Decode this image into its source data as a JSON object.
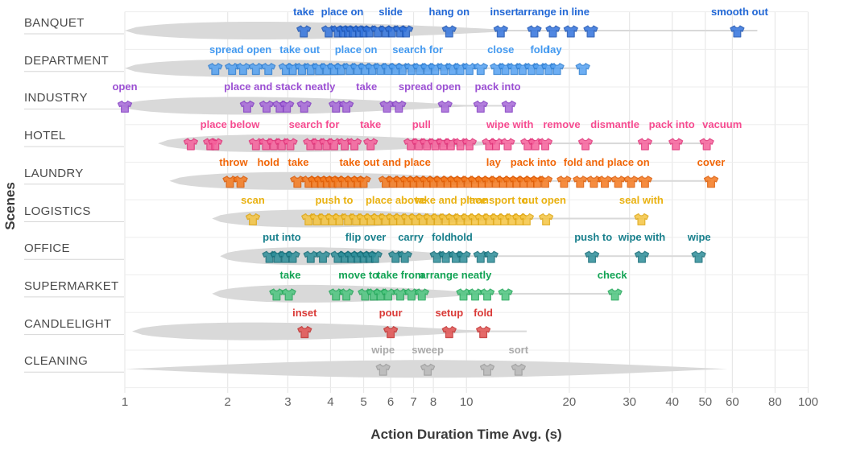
{
  "chart_data": {
    "type": "scatter",
    "subtype": "violin-strip-log",
    "xlabel": "Action Duration Time Avg. (s)",
    "ylabel": "Scenes",
    "x_scale": "log",
    "xlim": [
      1,
      100
    ],
    "x_ticks": [
      1,
      2,
      3,
      4,
      5,
      6,
      7,
      8,
      10,
      20,
      30,
      40,
      50,
      60,
      80,
      100
    ],
    "grid": "on",
    "marker_glyph": "tshirt-icon",
    "theme": {
      "background": "#ffffff",
      "violin_fill": "#d9d9d9",
      "grid_vertical": "#e8e8e8",
      "grid_horizontal": "#ededed",
      "row_separator": "#d6d6d6",
      "tick_text": "#636363",
      "row_label_text": "#4a4a4a",
      "axis_title_text": "#3a3a3a"
    },
    "scenes": [
      {
        "name": "BANQUET",
        "color": "#3273dd",
        "stroke": "#1d55b4",
        "label_color": "#2268d6",
        "violin": {
          "start": 1.0,
          "bump_end": 15,
          "tail_end": 71,
          "profile": "left"
        },
        "actions": [
          {
            "label": "take",
            "t": 3.34
          },
          {
            "label": "place on",
            "t": 4.33
          },
          {
            "label": "slide",
            "t": 6.0
          },
          {
            "label": "hang on",
            "t": 8.9
          },
          {
            "label": "insert",
            "t": 12.9
          },
          {
            "label": "arrange in line",
            "t": 18.0
          },
          {
            "label": "smooth out",
            "t": 63
          }
        ],
        "markers": [
          3.34,
          3.95,
          4.2,
          4.35,
          4.5,
          4.65,
          4.85,
          5.0,
          5.2,
          5.5,
          5.8,
          6.05,
          6.4,
          6.65,
          8.9,
          12.6,
          15.8,
          17.9,
          20.2,
          23.1,
          62
        ]
      },
      {
        "name": "DEPARTMENT",
        "color": "#54a1f1",
        "stroke": "#2f7fd3",
        "label_color": "#449af0",
        "violin": {
          "start": 1.0,
          "bump_end": 12,
          "tail_end": 22,
          "profile": "left"
        },
        "actions": [
          {
            "label": "spread open",
            "t": 2.18
          },
          {
            "label": "take out",
            "t": 3.25
          },
          {
            "label": "place on",
            "t": 4.75
          },
          {
            "label": "search for",
            "t": 7.2
          },
          {
            "label": "close",
            "t": 12.6
          },
          {
            "label": "fold",
            "t": 16.4
          },
          {
            "label": "lay",
            "t": 18.1
          }
        ],
        "markers": [
          1.84,
          2.06,
          2.22,
          2.42,
          2.63,
          2.96,
          3.1,
          3.3,
          3.5,
          3.7,
          3.9,
          4.1,
          4.3,
          4.55,
          4.8,
          5.05,
          5.3,
          5.6,
          5.9,
          6.2,
          6.5,
          6.9,
          7.3,
          7.7,
          8.1,
          8.6,
          9.1,
          9.6,
          10.2,
          11.0,
          12.3,
          13.0,
          13.8,
          14.6,
          15.5,
          16.4,
          17.4,
          18.4,
          21.9
        ]
      },
      {
        "name": "INDUSTRY",
        "color": "#a668d8",
        "stroke": "#843fc4",
        "label_color": "#9b4fd3",
        "violin": {
          "start": 0.97,
          "bump_end": 11,
          "tail_end": 13.5,
          "profile": "left"
        },
        "actions": [
          {
            "label": "open",
            "t": 1.0
          },
          {
            "label": "place and stack neatly",
            "t": 2.84
          },
          {
            "label": "take",
            "t": 5.1
          },
          {
            "label": "spread open",
            "t": 7.8
          },
          {
            "label": "pack into",
            "t": 12.35
          }
        ],
        "markers": [
          1.0,
          2.28,
          2.6,
          2.84,
          2.98,
          3.35,
          4.15,
          4.45,
          5.85,
          6.34,
          8.66,
          11.0,
          13.3
        ]
      },
      {
        "name": "HOTEL",
        "color": "#f6619b",
        "stroke": "#e03379",
        "label_color": "#f64b90",
        "violin": {
          "start": 1.25,
          "bump_end": 14,
          "tail_end": 51,
          "profile": "left"
        },
        "actions": [
          {
            "label": "place below",
            "t": 2.03
          },
          {
            "label": "search for",
            "t": 3.58
          },
          {
            "label": "take",
            "t": 5.24
          },
          {
            "label": "pull",
            "t": 7.38
          },
          {
            "label": "wipe with",
            "t": 13.4
          },
          {
            "label": "remove",
            "t": 19.0
          },
          {
            "label": "dismantle",
            "t": 27.2
          },
          {
            "label": "pack into",
            "t": 39.9
          },
          {
            "label": "vacuum",
            "t": 56
          }
        ],
        "markers": [
          1.56,
          1.78,
          1.84,
          2.42,
          2.59,
          2.73,
          2.88,
          3.05,
          3.49,
          3.68,
          3.89,
          4.1,
          4.4,
          4.7,
          5.24,
          6.87,
          7.25,
          7.66,
          8.1,
          8.55,
          9.0,
          9.6,
          10.2,
          11.65,
          12.2,
          13.2,
          15.1,
          15.9,
          17.0,
          22.3,
          33.3,
          41.0,
          50.5
        ]
      },
      {
        "name": "LAUNDRY",
        "color": "#f5791e",
        "stroke": "#dd5a03",
        "label_color": "#f1670a",
        "violin": {
          "start": 1.35,
          "bump_end": 16,
          "tail_end": 52,
          "profile": "left"
        },
        "actions": [
          {
            "label": "throw",
            "t": 2.08
          },
          {
            "label": "hold",
            "t": 2.63
          },
          {
            "label": "take",
            "t": 3.22
          },
          {
            "label": "take out and place",
            "t": 5.78
          },
          {
            "label": "lay",
            "t": 12.0
          },
          {
            "label": "pack into",
            "t": 15.7
          },
          {
            "label": "fold and place on",
            "t": 25.7
          },
          {
            "label": "cover",
            "t": 52
          }
        ],
        "markers": [
          2.03,
          2.18,
          3.2,
          3.45,
          3.6,
          3.75,
          3.9,
          4.05,
          4.2,
          4.4,
          4.6,
          4.8,
          5.0,
          5.8,
          6.1,
          6.4,
          6.7,
          7.0,
          7.3,
          7.65,
          8.0,
          8.4,
          8.8,
          9.2,
          9.6,
          10.1,
          10.6,
          11.1,
          11.6,
          12.2,
          12.8,
          13.4,
          14.0,
          14.7,
          15.4,
          16.1,
          17.0,
          19.3,
          21.5,
          23.6,
          25.4,
          27.8,
          30.3,
          33.3,
          52
        ]
      },
      {
        "name": "LOGISTICS",
        "color": "#f5c542",
        "stroke": "#dfa713",
        "label_color": "#eab211",
        "violin": {
          "start": 1.8,
          "bump_end": 14,
          "tail_end": 33,
          "profile": "left"
        },
        "actions": [
          {
            "label": "scan",
            "t": 2.37
          },
          {
            "label": "push to",
            "t": 4.1
          },
          {
            "label": "place above",
            "t": 6.2
          },
          {
            "label": "take and place",
            "t": 9.0
          },
          {
            "label": "transport to",
            "t": 12.4
          },
          {
            "label": "cut open",
            "t": 16.9
          },
          {
            "label": "seal with",
            "t": 32.5
          }
        ],
        "markers": [
          2.37,
          3.45,
          3.65,
          3.85,
          4.05,
          4.25,
          4.5,
          4.75,
          5.0,
          5.25,
          5.5,
          5.8,
          6.1,
          6.4,
          6.75,
          7.1,
          7.45,
          7.85,
          8.25,
          8.7,
          9.1,
          9.6,
          10.1,
          10.6,
          11.1,
          11.7,
          12.3,
          12.9,
          13.6,
          14.3,
          15.0,
          17.1,
          32.5
        ]
      },
      {
        "name": "OFFICE",
        "color": "#2d8e99",
        "stroke": "#156d78",
        "label_color": "#19808d",
        "violin": {
          "start": 1.9,
          "bump_end": 11,
          "tail_end": 48,
          "profile": "left"
        },
        "actions": [
          {
            "label": "put into",
            "t": 2.88
          },
          {
            "label": "flip over",
            "t": 5.07
          },
          {
            "label": "carry",
            "t": 6.87
          },
          {
            "label": "fold",
            "t": 8.44
          },
          {
            "label": "hold",
            "t": 9.67
          },
          {
            "label": "push to",
            "t": 23.5
          },
          {
            "label": "wipe with",
            "t": 32.6
          },
          {
            "label": "wipe",
            "t": 48
          }
        ],
        "markers": [
          2.65,
          2.8,
          2.95,
          3.1,
          3.5,
          3.8,
          4.2,
          4.4,
          4.6,
          4.8,
          5.0,
          5.2,
          5.4,
          6.2,
          6.6,
          8.2,
          8.7,
          9.3,
          9.8,
          11.0,
          11.8,
          23.3,
          32.6,
          47.8
        ]
      },
      {
        "name": "SUPERMARKET",
        "color": "#4cc57e",
        "stroke": "#23a75a",
        "label_color": "#13a455",
        "violin": {
          "start": 1.8,
          "bump_end": 12,
          "tail_end": 27.5,
          "profile": "left"
        },
        "actions": [
          {
            "label": "take",
            "t": 3.05
          },
          {
            "label": "move to",
            "t": 4.83
          },
          {
            "label": "take from",
            "t": 6.41
          },
          {
            "label": "arrange neatly",
            "t": 9.3
          },
          {
            "label": "check",
            "t": 26.7
          }
        ],
        "markers": [
          2.78,
          3.02,
          4.15,
          4.45,
          5.05,
          5.35,
          5.6,
          5.9,
          6.4,
          6.9,
          7.4,
          9.8,
          10.6,
          11.5,
          13.0,
          27.2
        ]
      },
      {
        "name": "CANDLELIGHT",
        "color": "#e25150",
        "stroke": "#c22f2e",
        "label_color": "#da3a37",
        "violin": {
          "start": 1.05,
          "bump_end": 12,
          "tail_end": 15,
          "profile": "left"
        },
        "actions": [
          {
            "label": "inset",
            "t": 3.36
          },
          {
            "label": "pour",
            "t": 6.0
          },
          {
            "label": "setup",
            "t": 8.9
          },
          {
            "label": "fold",
            "t": 11.2
          }
        ],
        "markers": [
          3.36,
          6.0,
          8.9,
          11.2
        ]
      },
      {
        "name": "CLEANING",
        "color": "#b9b9b9",
        "stroke": "#9d9d9d",
        "label_color": "#ababab",
        "violin": {
          "start": 1.0,
          "bump_end": 58,
          "tail_end": 58,
          "profile": "mid"
        },
        "actions": [
          {
            "label": "wipe",
            "t": 5.7
          },
          {
            "label": "sweep",
            "t": 7.7
          },
          {
            "label": "sort",
            "t": 14.2
          }
        ],
        "markers": [
          5.7,
          7.7,
          11.5,
          14.2
        ]
      }
    ]
  }
}
